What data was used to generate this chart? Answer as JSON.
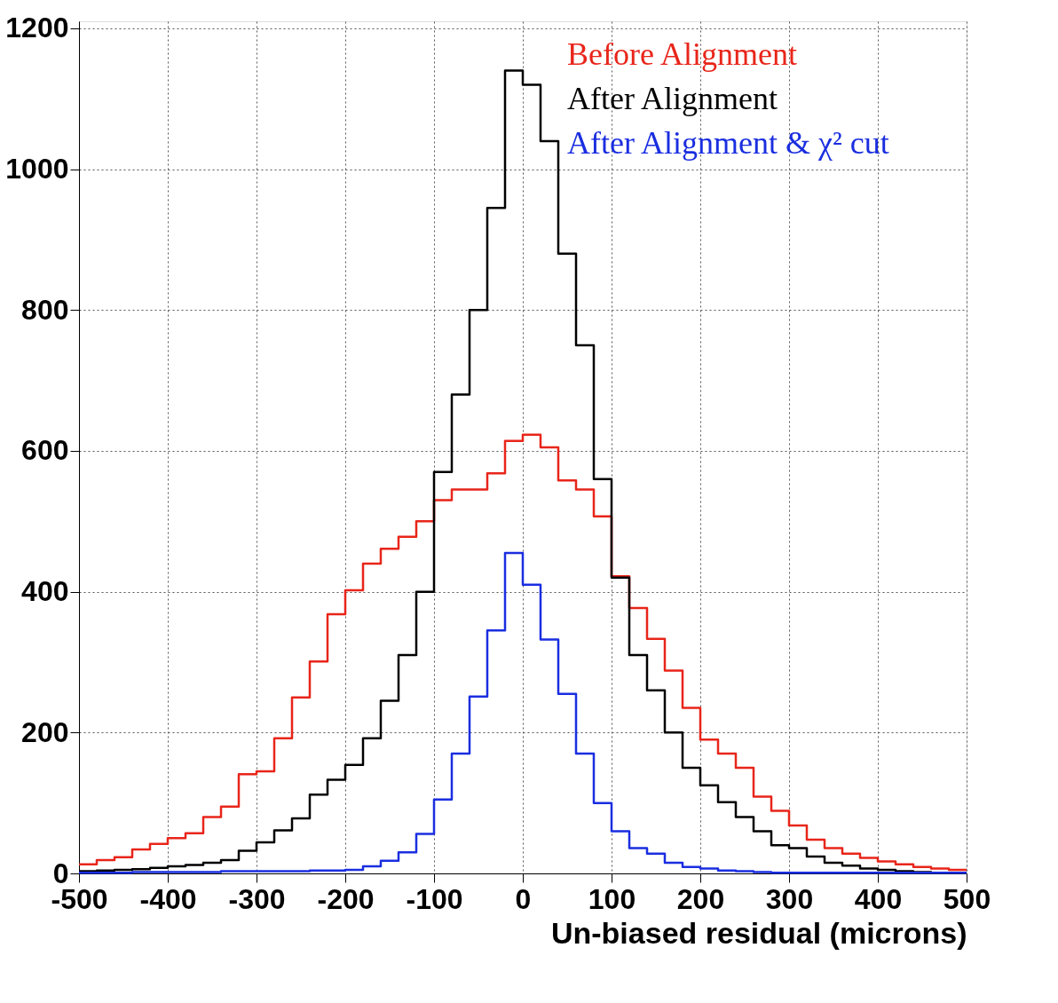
{
  "chart_data": {
    "type": "histogram",
    "xlabel": "Un-biased residual (microns)",
    "bins": [
      -500,
      -480,
      -460,
      -440,
      -420,
      -400,
      -380,
      -360,
      -340,
      -320,
      -300,
      -280,
      -260,
      -240,
      -220,
      -200,
      -180,
      -160,
      -140,
      -120,
      -100,
      -80,
      -60,
      -40,
      -20,
      0,
      20,
      40,
      60,
      80,
      100,
      120,
      140,
      160,
      180,
      200,
      220,
      240,
      260,
      280,
      300,
      320,
      340,
      360,
      380,
      400,
      420,
      440,
      460,
      480,
      500
    ],
    "series": [
      {
        "name": "Before Alignment",
        "color": "#e8251a",
        "values": [
          13,
          19,
          23,
          34,
          42,
          50,
          57,
          80,
          95,
          141,
          145,
          192,
          250,
          301,
          368,
          402,
          440,
          461,
          478,
          500,
          530,
          545,
          545,
          568,
          614,
          623,
          605,
          558,
          545,
          507,
          422,
          377,
          333,
          288,
          235,
          190,
          170,
          150,
          109,
          89,
          68,
          48,
          36,
          28,
          22,
          17,
          13,
          9,
          7,
          5
        ]
      },
      {
        "name": "After Alignment",
        "color": "#000000",
        "values": [
          3,
          4,
          5,
          6,
          8,
          10,
          12,
          15,
          19,
          32,
          44,
          61,
          78,
          112,
          133,
          154,
          192,
          245,
          310,
          400,
          570,
          680,
          800,
          945,
          1140,
          1120,
          1040,
          880,
          750,
          560,
          420,
          310,
          260,
          200,
          150,
          125,
          101,
          80,
          60,
          40,
          36,
          24,
          15,
          11,
          7,
          5,
          3,
          2,
          1,
          1
        ]
      },
      {
        "name": "After Alignment & χ² cut",
        "color": "#1a2ee0",
        "values": [
          1,
          1,
          1,
          2,
          2,
          2,
          2,
          2,
          3,
          3,
          3,
          3,
          3,
          4,
          4,
          5,
          10,
          18,
          30,
          56,
          105,
          170,
          251,
          345,
          455,
          410,
          332,
          255,
          170,
          100,
          60,
          36,
          28,
          15,
          9,
          7,
          4,
          3,
          2,
          1,
          1,
          1,
          1,
          1,
          1,
          1,
          1,
          1,
          1,
          1
        ]
      }
    ],
    "xlim": [
      -500,
      500
    ],
    "xticks": [
      -500,
      -400,
      -300,
      -200,
      -100,
      0,
      100,
      200,
      300,
      400,
      500
    ],
    "ylim": [
      0,
      1210
    ],
    "yticks": [
      0,
      200,
      400,
      600,
      800,
      1000,
      1200
    ],
    "grid": true,
    "legend": "top right"
  }
}
